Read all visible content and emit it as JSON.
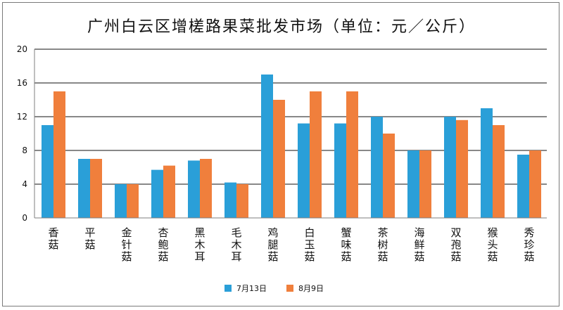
{
  "chart_data": {
    "type": "bar",
    "title": "广州白云区增槎路果菜批发市场（单位：元／公斤）",
    "categories": [
      "香菇",
      "平菇",
      "金针菇",
      "杏鲍菇",
      "黑木耳",
      "毛木耳",
      "鸡腿菇",
      "白玉菇",
      "蟹味菇",
      "茶树菇",
      "海鲜菇",
      "双孢菇",
      "猴头菇",
      "秀珍菇"
    ],
    "series": [
      {
        "name": "7月13日",
        "color": "#2a9fd8",
        "values": [
          11,
          7,
          4,
          5.7,
          6.8,
          4.2,
          17,
          11.2,
          11.2,
          12,
          8,
          12,
          13,
          7.5
        ]
      },
      {
        "name": "8月9日",
        "color": "#f07f3c",
        "values": [
          15,
          7,
          4,
          6.2,
          7,
          4,
          14,
          15,
          15,
          10,
          8,
          11.6,
          11,
          8
        ]
      }
    ],
    "ylim": [
      0,
      20
    ],
    "yticks": [
      0,
      4,
      8,
      12,
      16,
      20
    ],
    "grid": true,
    "legend": "bottom",
    "xlabel": "",
    "ylabel": ""
  }
}
